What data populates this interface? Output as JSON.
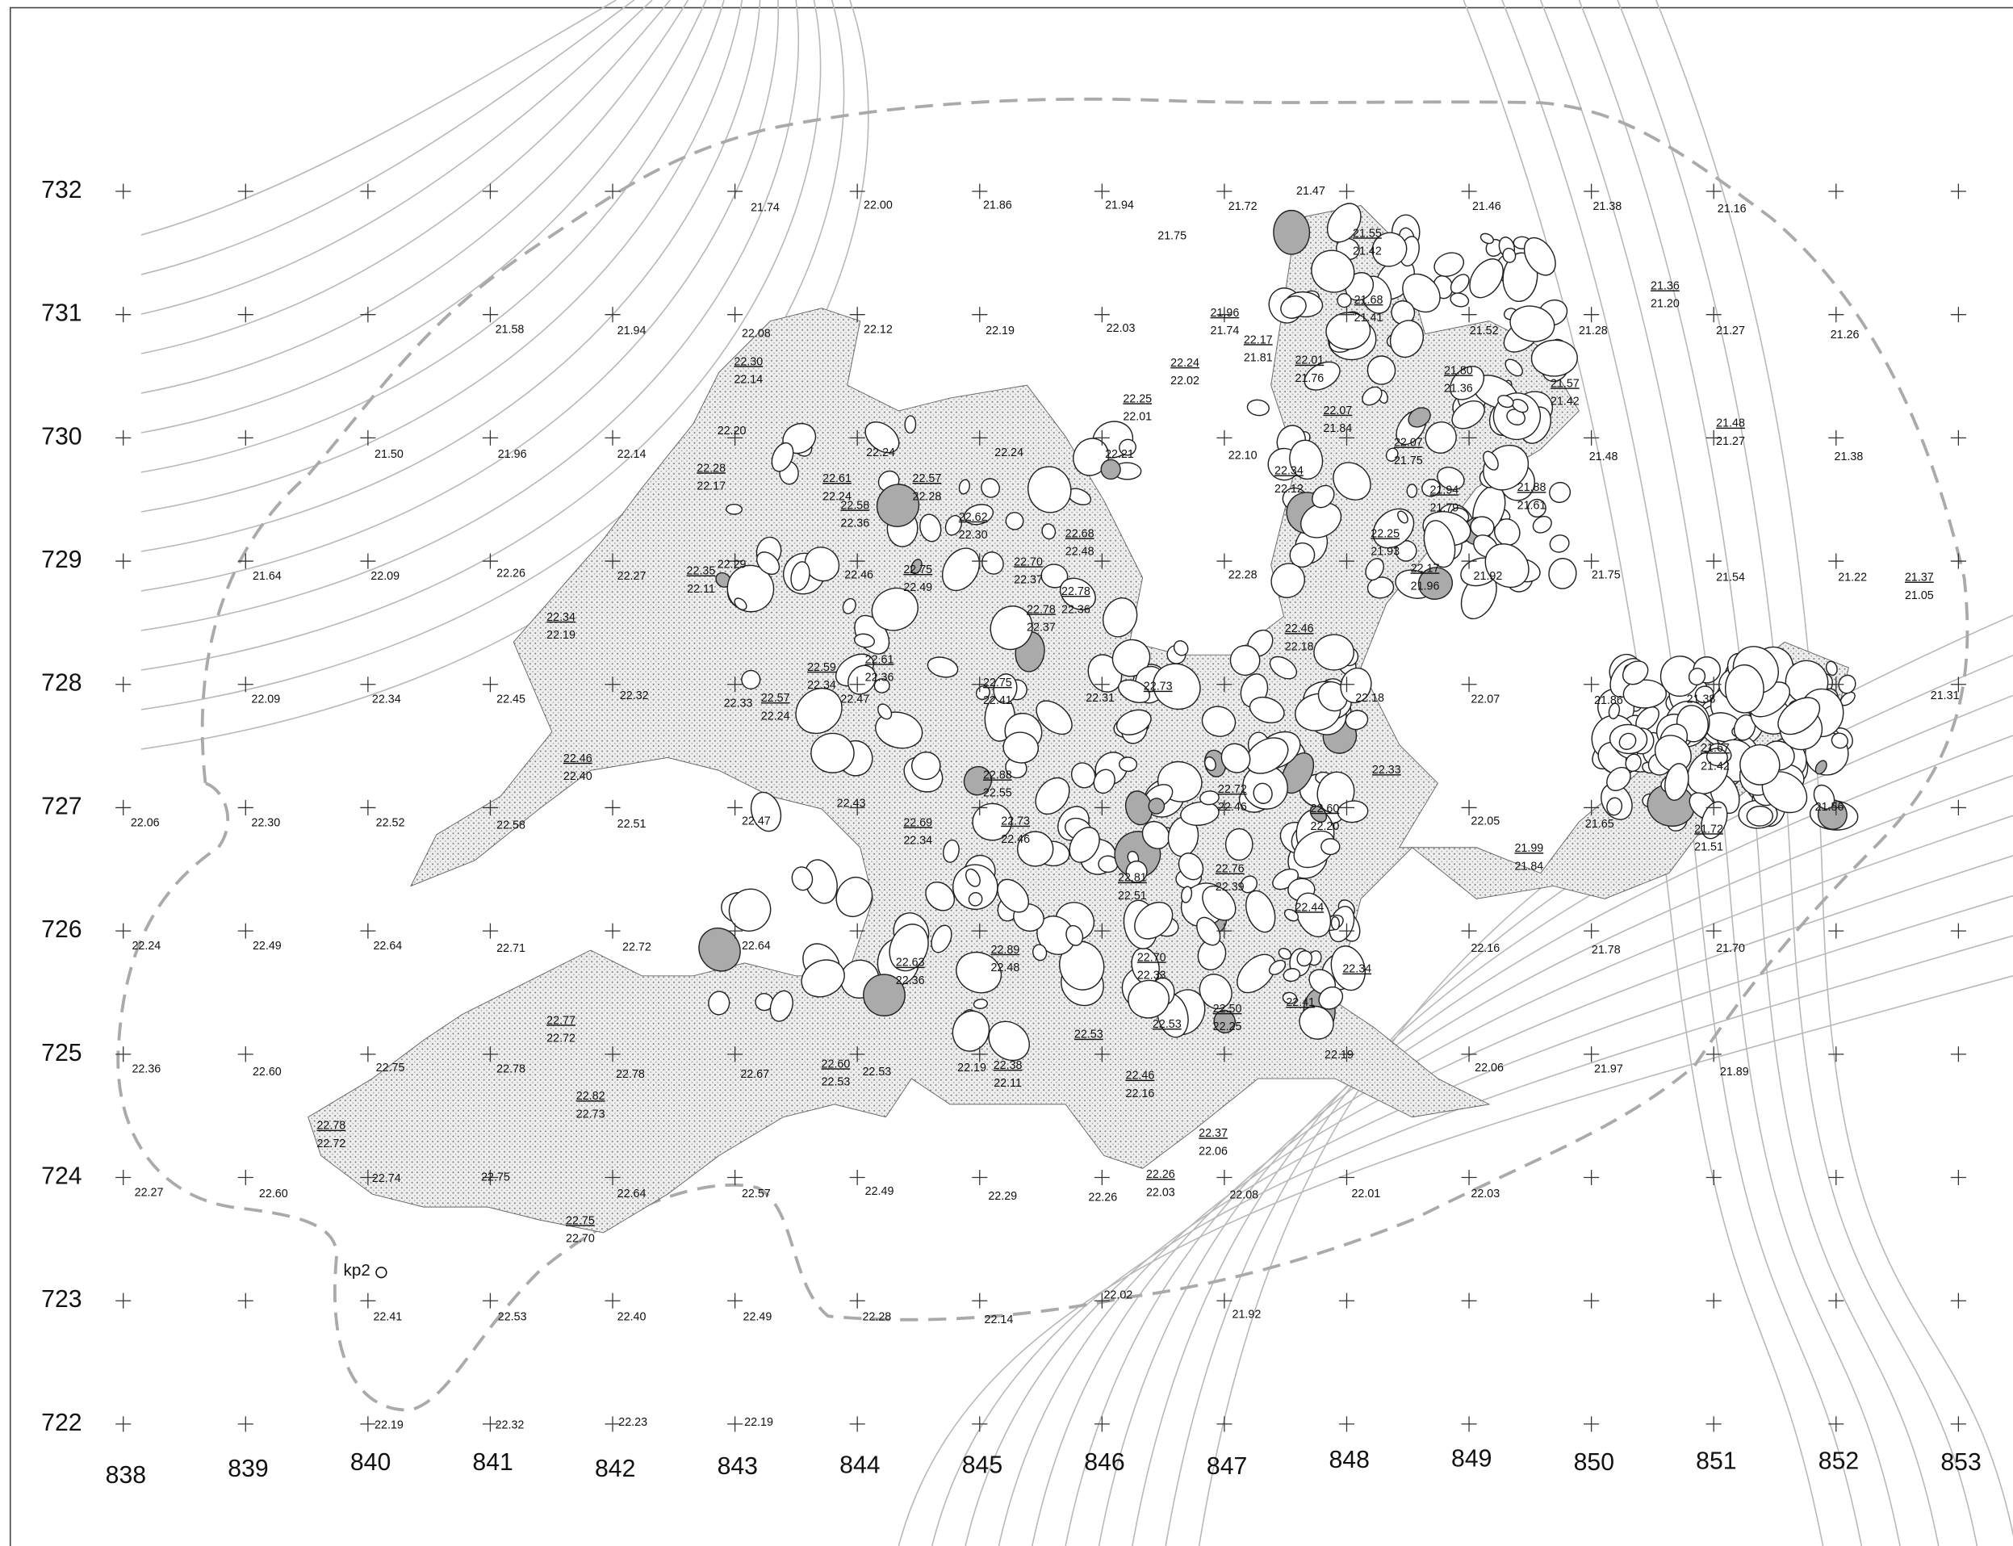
{
  "row_labels": [
    732,
    731,
    730,
    729,
    728,
    727,
    726,
    725,
    724,
    723,
    722
  ],
  "column_labels": [
    838,
    839,
    840,
    841,
    842,
    843,
    844,
    845,
    846,
    847,
    848,
    849,
    850,
    851,
    852,
    853
  ],
  "point_label": "kp2",
  "spot_heights": [
    "21.74",
    "22.00",
    "21.86",
    "21.94",
    "21.72",
    "21.47",
    "21.46",
    "21.38",
    "21.16",
    "21.75",
    "21.58",
    "21.94",
    "22.08",
    "22.12",
    "22.19",
    "22.03",
    "21.52",
    "21.28",
    "21.27",
    "21.26",
    "21.50",
    "21.96",
    "22.14",
    "22.21",
    "22.10",
    "21.48",
    "21.38",
    "21.64",
    "22.09",
    "22.26",
    "22.27",
    "22.28",
    "21.92",
    "21.75",
    "21.54",
    "21.22",
    "22.09",
    "22.34",
    "22.45",
    "22.33",
    "22.31",
    "22.18",
    "22.07",
    "21.86",
    "21.38",
    "21.31",
    "22.06",
    "22.30",
    "22.52",
    "22.58",
    "22.51",
    "22.47",
    "22.05",
    "21.65",
    "21.56",
    "22.24",
    "22.49",
    "22.64",
    "22.71",
    "22.72",
    "22.64",
    "22.16",
    "21.78",
    "21.70",
    "22.36",
    "22.60",
    "22.75",
    "22.78",
    "22.78",
    "22.67",
    "22.53",
    "22.19",
    "22.06",
    "21.97",
    "21.89",
    "22.19",
    "22.27",
    "22.60",
    "22.74",
    "22.57",
    "22.49",
    "22.29",
    "22.26",
    "22.08",
    "22.01",
    "22.03",
    "22.41",
    "22.53",
    "22.40",
    "22.49",
    "22.28",
    "22.14",
    "22.02",
    "21.92",
    "22.19",
    "22.32",
    "22.23",
    "22.19",
    "22.20",
    "22.29",
    "22.32",
    "22.47",
    "22.24",
    "22.24",
    "22.46",
    "22.43",
    "22.75",
    "22.64"
  ],
  "marked_heights": [
    "22.73",
    "22.33",
    "22.44",
    "22.34",
    "22.41",
    "22.53",
    "22.53"
  ],
  "level_pairs": [
    {
      "top": "22.30",
      "bottom": "22.14"
    },
    {
      "top": "22.28",
      "bottom": "22.17"
    },
    {
      "top": "22.35",
      "bottom": "22.11"
    },
    {
      "top": "22.34",
      "bottom": "22.19"
    },
    {
      "top": "22.46",
      "bottom": "22.40"
    },
    {
      "top": "22.57",
      "bottom": "22.24"
    },
    {
      "top": "22.59",
      "bottom": "22.34"
    },
    {
      "top": "22.61",
      "bottom": "22.36"
    },
    {
      "top": "22.61",
      "bottom": "22.24"
    },
    {
      "top": "22.58",
      "bottom": "22.36"
    },
    {
      "top": "22.57",
      "bottom": "22.28"
    },
    {
      "top": "22.62",
      "bottom": "22.30"
    },
    {
      "top": "22.75",
      "bottom": "22.49"
    },
    {
      "top": "22.70",
      "bottom": "22.37"
    },
    {
      "top": "22.68",
      "bottom": "22.48"
    },
    {
      "top": "22.78",
      "bottom": "22.36"
    },
    {
      "top": "22.78",
      "bottom": "22.37"
    },
    {
      "top": "22.75",
      "bottom": "22.41"
    },
    {
      "top": "22.88",
      "bottom": "22.55"
    },
    {
      "top": "22.69",
      "bottom": "22.34"
    },
    {
      "top": "22.73",
      "bottom": "22.46"
    },
    {
      "top": "22.72",
      "bottom": "22.46"
    },
    {
      "top": "22.60",
      "bottom": "22.20"
    },
    {
      "top": "22.81",
      "bottom": "22.51"
    },
    {
      "top": "22.76",
      "bottom": "22.39"
    },
    {
      "top": "22.89",
      "bottom": "22.48"
    },
    {
      "top": "22.70",
      "bottom": "22.33"
    },
    {
      "top": "22.63",
      "bottom": "22.36"
    },
    {
      "top": "22.50",
      "bottom": "22.25"
    },
    {
      "top": "22.46",
      "bottom": "22.16"
    },
    {
      "top": "22.38",
      "bottom": "22.11"
    },
    {
      "top": "22.60",
      "bottom": "22.53"
    },
    {
      "top": "22.37",
      "bottom": "22.06"
    },
    {
      "top": "22.26",
      "bottom": "22.03"
    },
    {
      "top": "22.77",
      "bottom": "22.72"
    },
    {
      "top": "22.82",
      "bottom": "22.73"
    },
    {
      "top": "22.78",
      "bottom": "22.72"
    },
    {
      "top": "22.75",
      "bottom": "22.70"
    },
    {
      "top": "22.24",
      "bottom": "22.02"
    },
    {
      "top": "22.25",
      "bottom": "22.01"
    },
    {
      "top": "21.96",
      "bottom": "21.74"
    },
    {
      "top": "22.17",
      "bottom": "21.81"
    },
    {
      "top": "22.01",
      "bottom": "21.76"
    },
    {
      "top": "22.07",
      "bottom": "21.84"
    },
    {
      "top": "21.55",
      "bottom": "21.42"
    },
    {
      "top": "21.68",
      "bottom": "21.41"
    },
    {
      "top": "21.80",
      "bottom": "21.36"
    },
    {
      "top": "21.57",
      "bottom": "21.42"
    },
    {
      "top": "22.07",
      "bottom": "21.75"
    },
    {
      "top": "21.94",
      "bottom": "21.79"
    },
    {
      "top": "21.88",
      "bottom": "21.61"
    },
    {
      "top": "22.34",
      "bottom": "22.12"
    },
    {
      "top": "22.25",
      "bottom": "21.93"
    },
    {
      "top": "22.17",
      "bottom": "21.96"
    },
    {
      "top": "22.46",
      "bottom": "22.18"
    },
    {
      "top": "21.36",
      "bottom": "21.20"
    },
    {
      "top": "21.48",
      "bottom": "21.27"
    },
    {
      "top": "21.37",
      "bottom": "21.05"
    },
    {
      "top": "21.67",
      "bottom": "21.42"
    },
    {
      "top": "21.72",
      "bottom": "21.51"
    },
    {
      "top": "21.99",
      "bottom": "21.84"
    }
  ]
}
